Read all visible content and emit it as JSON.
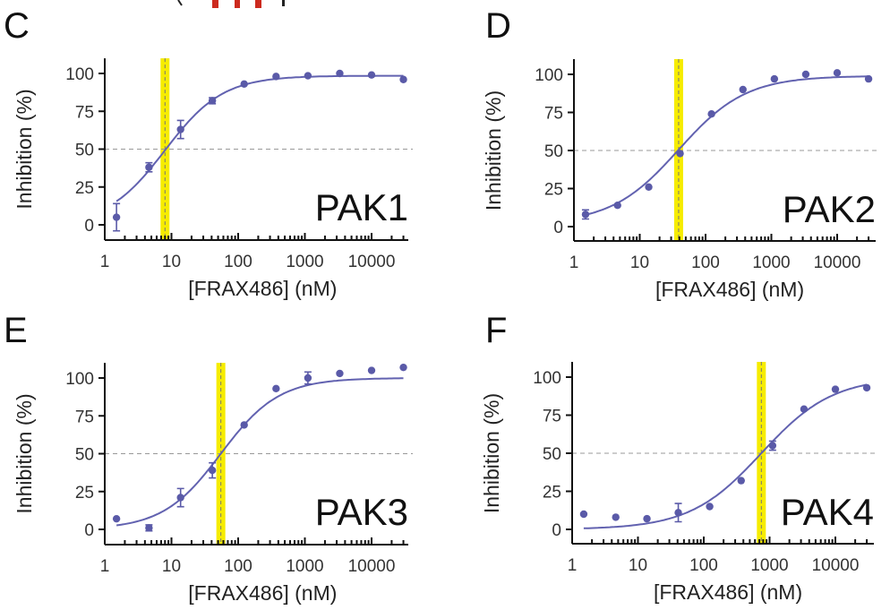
{
  "chart_data": [
    {
      "panel_label": "C",
      "type": "scatter",
      "title": "PAK1",
      "xlabel": "[FRAX486] (nM)",
      "ylabel": "Inhibition (%)",
      "xscale": "log",
      "xlim": [
        1,
        30000
      ],
      "ylim": [
        -10,
        110
      ],
      "xticks": [
        "1",
        "10",
        "100",
        "1000",
        "10000"
      ],
      "yticks": [
        "0",
        "25",
        "50",
        "75",
        "100"
      ],
      "x": [
        1.5,
        4.6,
        13.7,
        41,
        123,
        370,
        1111,
        3333,
        10000,
        30000
      ],
      "y": [
        5,
        38,
        63,
        82,
        93,
        98,
        98.5,
        100,
        99,
        96
      ],
      "error": [
        9,
        3,
        6,
        2,
        0,
        0,
        0,
        0,
        0,
        0
      ],
      "fit": {
        "bottom": 0,
        "top": 98.5,
        "ic50": 8,
        "hill": 1.0
      },
      "ic50_marker": 8,
      "reference_line_y": 50
    },
    {
      "panel_label": "D",
      "type": "scatter",
      "title": "PAK2",
      "xlabel": "[FRAX486] (nM)",
      "ylabel": "Inhibition (%)",
      "xscale": "log",
      "xlim": [
        1,
        30000
      ],
      "ylim": [
        -10,
        110
      ],
      "xticks": [
        "1",
        "10",
        "100",
        "1000",
        "10000"
      ],
      "yticks": [
        "0",
        "25",
        "50",
        "75",
        "100"
      ],
      "x": [
        1.5,
        4.6,
        13.7,
        41,
        123,
        370,
        1111,
        3333,
        10000,
        30000
      ],
      "y": [
        8,
        14,
        26,
        48,
        74,
        90,
        97,
        100,
        101,
        97
      ],
      "error": [
        3,
        0,
        0,
        0,
        0,
        0,
        0,
        0,
        0,
        0
      ],
      "fit": {
        "bottom": 2,
        "top": 99,
        "ic50": 39,
        "hill": 0.85
      },
      "ic50_marker": 39,
      "reference_line_y": 50
    },
    {
      "panel_label": "E",
      "type": "scatter",
      "title": "PAK3",
      "xlabel": "[FRAX486] (nM)",
      "ylabel": "Inhibition (%)",
      "xscale": "log",
      "xlim": [
        1,
        30000
      ],
      "ylim": [
        -10,
        110
      ],
      "xticks": [
        "1",
        "10",
        "100",
        "1000",
        "10000"
      ],
      "yticks": [
        "0",
        "25",
        "50",
        "75",
        "100"
      ],
      "x": [
        1.5,
        4.6,
        13.7,
        41,
        123,
        370,
        1111,
        3333,
        10000,
        30000
      ],
      "y": [
        7,
        1,
        21,
        39,
        69,
        93,
        100,
        103,
        105,
        107
      ],
      "error": [
        0,
        2,
        6,
        5,
        0,
        0,
        4,
        0,
        0,
        0
      ],
      "fit": {
        "bottom": 0,
        "top": 100,
        "ic50": 55,
        "hill": 1.0
      },
      "ic50_marker": 55,
      "reference_line_y": 50
    },
    {
      "panel_label": "F",
      "type": "scatter",
      "title": "PAK4",
      "xlabel": "[FRAX486] (nM)",
      "ylabel": "Inhibition (%)",
      "xscale": "log",
      "xlim": [
        1,
        30000
      ],
      "ylim": [
        -10,
        110
      ],
      "xticks": [
        "1",
        "10",
        "100",
        "1000",
        "10000"
      ],
      "yticks": [
        "0",
        "25",
        "50",
        "75",
        "100"
      ],
      "x": [
        1.5,
        4.6,
        13.7,
        41,
        123,
        370,
        1111,
        3333,
        10000,
        30000
      ],
      "y": [
        10,
        8,
        7,
        11,
        15,
        32,
        55,
        79,
        92,
        93
      ],
      "error": [
        0,
        0,
        0,
        6,
        0,
        0,
        3,
        0,
        0,
        0
      ],
      "fit": {
        "bottom": 0,
        "top": 100,
        "ic50": 750,
        "hill": 0.8
      },
      "ic50_marker": 750,
      "reference_line_y": 50
    }
  ],
  "colors": {
    "series": "#5a5aa8",
    "curve": "#6262b0",
    "ic50_band": "#f6ec00",
    "reference": "#999999",
    "top_fragment": "#cc2a1e"
  }
}
